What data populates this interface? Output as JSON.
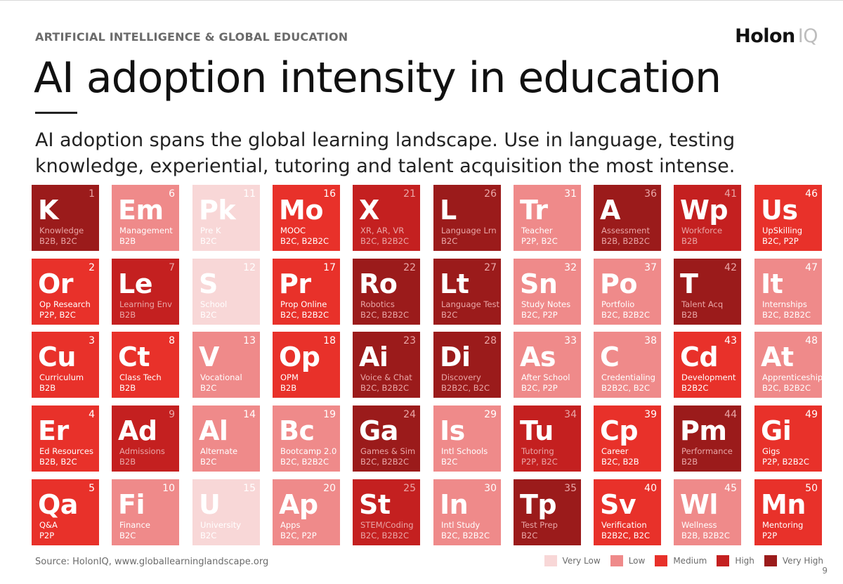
{
  "header": {
    "section_label": "ARTIFICIAL INTELLIGENCE & GLOBAL EDUCATION",
    "logo_main": "Holon",
    "logo_accent": "IQ"
  },
  "title": "AI adoption intensity in education",
  "subtitle": "AI adoption spans the global learning landscape. Use in language, testing knowledge, experiential, tutoring and talent acquisition the most intense.",
  "colors": {
    "very_low": "#f8d7d7",
    "low": "#ef8a8a",
    "medium": "#e8312a",
    "high": "#c42020",
    "very_high": "#9b1b1b"
  },
  "elements": [
    {
      "num": "1",
      "sym": "K",
      "name": "Knowledge",
      "type": "B2B, B2C",
      "level": "very_high"
    },
    {
      "num": "2",
      "sym": "Or",
      "name": "Op Research",
      "type": "P2P, B2C",
      "level": "medium"
    },
    {
      "num": "3",
      "sym": "Cu",
      "name": "Curriculum",
      "type": "B2B",
      "level": "medium"
    },
    {
      "num": "4",
      "sym": "Er",
      "name": "Ed Resources",
      "type": "B2B, B2C",
      "level": "medium"
    },
    {
      "num": "5",
      "sym": "Qa",
      "name": "Q&A",
      "type": "P2P",
      "level": "medium"
    },
    {
      "num": "6",
      "sym": "Em",
      "name": "Management",
      "type": "B2B",
      "level": "low"
    },
    {
      "num": "7",
      "sym": "Le",
      "name": "Learning Env",
      "type": "B2B",
      "level": "high"
    },
    {
      "num": "8",
      "sym": "Ct",
      "name": "Class Tech",
      "type": "B2B",
      "level": "medium"
    },
    {
      "num": "9",
      "sym": "Ad",
      "name": "Admissions",
      "type": "B2B",
      "level": "high"
    },
    {
      "num": "10",
      "sym": "Fi",
      "name": "Finance",
      "type": "B2C",
      "level": "low"
    },
    {
      "num": "11",
      "sym": "Pk",
      "name": "Pre K",
      "type": "B2C",
      "level": "very_low"
    },
    {
      "num": "12",
      "sym": "S",
      "name": "School",
      "type": "B2C",
      "level": "very_low"
    },
    {
      "num": "13",
      "sym": "V",
      "name": "Vocational",
      "type": "B2C",
      "level": "low"
    },
    {
      "num": "14",
      "sym": "Al",
      "name": "Alternate",
      "type": "B2C",
      "level": "low"
    },
    {
      "num": "15",
      "sym": "U",
      "name": "University",
      "type": "B2C",
      "level": "very_low"
    },
    {
      "num": "16",
      "sym": "Mo",
      "name": "MOOC",
      "type": "B2C, B2B2C",
      "level": "medium"
    },
    {
      "num": "17",
      "sym": "Pr",
      "name": "Prop Online",
      "type": "B2C, B2B2C",
      "level": "medium"
    },
    {
      "num": "18",
      "sym": "Op",
      "name": "OPM",
      "type": "B2B",
      "level": "medium"
    },
    {
      "num": "19",
      "sym": "Bc",
      "name": "Bootcamp 2.0",
      "type": "B2C, B2B2C",
      "level": "low"
    },
    {
      "num": "20",
      "sym": "Ap",
      "name": "Apps",
      "type": "B2C, P2P",
      "level": "low"
    },
    {
      "num": "21",
      "sym": "X",
      "name": "XR, AR, VR",
      "type": "B2C, B2B2C",
      "level": "high"
    },
    {
      "num": "22",
      "sym": "Ro",
      "name": "Robotics",
      "type": "B2C, B2B2C",
      "level": "very_high"
    },
    {
      "num": "23",
      "sym": "Ai",
      "name": "Voice & Chat",
      "type": "B2C, B2B2C",
      "level": "very_high"
    },
    {
      "num": "24",
      "sym": "Ga",
      "name": "Games & Sim",
      "type": "B2C, B2B2C",
      "level": "very_high"
    },
    {
      "num": "25",
      "sym": "St",
      "name": "STEM/Coding",
      "type": "B2C, B2B2C",
      "level": "high"
    },
    {
      "num": "26",
      "sym": "L",
      "name": "Language Lrn",
      "type": "B2C",
      "level": "very_high"
    },
    {
      "num": "27",
      "sym": "Lt",
      "name": "Language Test",
      "type": "B2C",
      "level": "very_high"
    },
    {
      "num": "28",
      "sym": "Di",
      "name": "Discovery",
      "type": "B2B2C, B2C",
      "level": "very_high"
    },
    {
      "num": "29",
      "sym": "Is",
      "name": "Intl Schools",
      "type": "B2C",
      "level": "low"
    },
    {
      "num": "30",
      "sym": "In",
      "name": "Intl Study",
      "type": "B2C, B2B2C",
      "level": "low"
    },
    {
      "num": "31",
      "sym": "Tr",
      "name": "Teacher",
      "type": "P2P, B2C",
      "level": "low"
    },
    {
      "num": "32",
      "sym": "Sn",
      "name": "Study Notes",
      "type": "B2C, P2P",
      "level": "low"
    },
    {
      "num": "33",
      "sym": "As",
      "name": "After School",
      "type": "B2C, P2P",
      "level": "low"
    },
    {
      "num": "34",
      "sym": "Tu",
      "name": "Tutoring",
      "type": "P2P, B2C",
      "level": "high"
    },
    {
      "num": "35",
      "sym": "Tp",
      "name": "Test Prep",
      "type": "B2C",
      "level": "very_high"
    },
    {
      "num": "36",
      "sym": "A",
      "name": "Assessment",
      "type": "B2B, B2B2C",
      "level": "very_high"
    },
    {
      "num": "37",
      "sym": "Po",
      "name": "Portfolio",
      "type": "B2C, B2B2C",
      "level": "low"
    },
    {
      "num": "38",
      "sym": "C",
      "name": "Credentialing",
      "type": "B2B2C, B2C",
      "level": "low"
    },
    {
      "num": "39",
      "sym": "Cp",
      "name": "Career",
      "type": "B2C, B2B",
      "level": "medium"
    },
    {
      "num": "40",
      "sym": "Sv",
      "name": "Verification",
      "type": "B2B2C, B2C",
      "level": "medium"
    },
    {
      "num": "41",
      "sym": "Wp",
      "name": "Workforce",
      "type": "B2B",
      "level": "high"
    },
    {
      "num": "42",
      "sym": "T",
      "name": "Talent Acq",
      "type": "B2B",
      "level": "very_high"
    },
    {
      "num": "43",
      "sym": "Cd",
      "name": "Development",
      "type": "B2B2C",
      "level": "medium"
    },
    {
      "num": "44",
      "sym": "Pm",
      "name": "Performance",
      "type": "B2B",
      "level": "very_high"
    },
    {
      "num": "45",
      "sym": "Wl",
      "name": "Wellness",
      "type": "B2B, B2B2C",
      "level": "low"
    },
    {
      "num": "46",
      "sym": "Us",
      "name": "UpSkilling",
      "type": "B2C, P2P",
      "level": "medium"
    },
    {
      "num": "47",
      "sym": "It",
      "name": "Internships",
      "type": "B2C, B2B2C",
      "level": "low"
    },
    {
      "num": "48",
      "sym": "At",
      "name": "Apprenticeship",
      "type": "B2C, B2B2C",
      "level": "low"
    },
    {
      "num": "49",
      "sym": "Gi",
      "name": "Gigs",
      "type": "P2P, B2B2C",
      "level": "medium"
    },
    {
      "num": "50",
      "sym": "Mn",
      "name": "Mentoring",
      "type": "P2P",
      "level": "medium"
    }
  ],
  "footer": {
    "source": "Source: HolonIQ, www.globallearninglandscape.org",
    "page_number": "9"
  },
  "legend": [
    {
      "label": "Very Low",
      "level": "very_low"
    },
    {
      "label": "Low",
      "level": "low"
    },
    {
      "label": "Medium",
      "level": "medium"
    },
    {
      "label": "High",
      "level": "high"
    },
    {
      "label": "Very High",
      "level": "very_high"
    }
  ]
}
